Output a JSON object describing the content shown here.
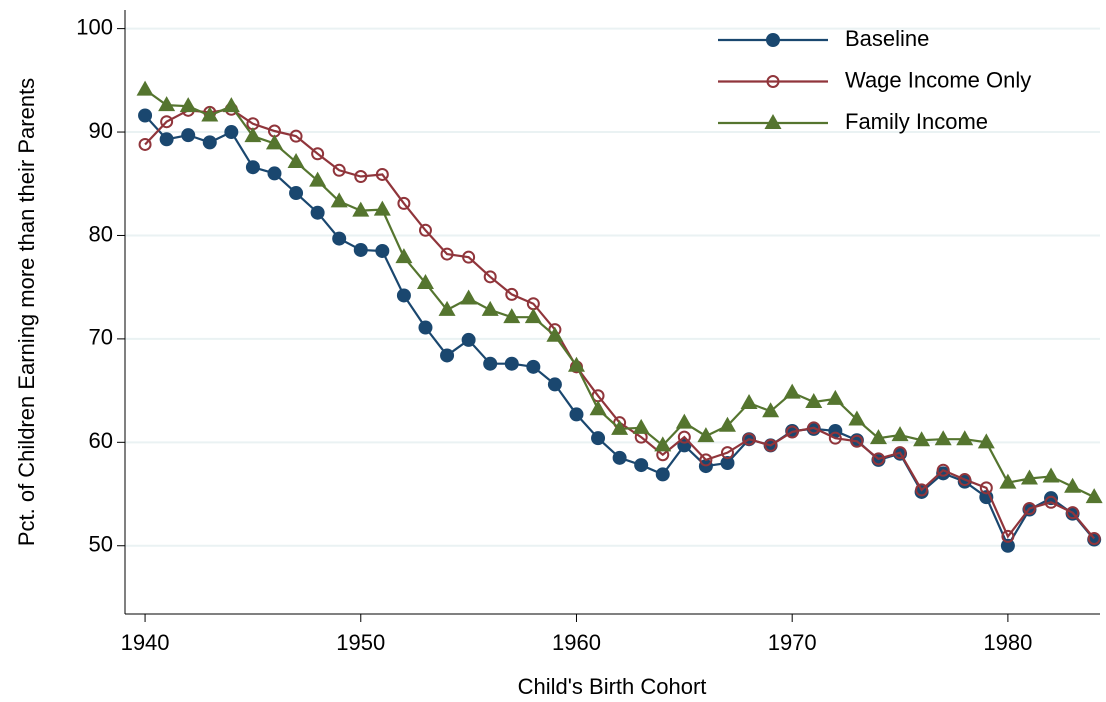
{
  "chart_data": {
    "type": "line",
    "x_label": "Child's Birth Cohort",
    "y_label": "Pct. of Children Earning more than their Parents",
    "x": [
      1940,
      1941,
      1942,
      1943,
      1944,
      1945,
      1946,
      1947,
      1948,
      1949,
      1950,
      1951,
      1952,
      1953,
      1954,
      1955,
      1956,
      1957,
      1958,
      1959,
      1960,
      1961,
      1962,
      1963,
      1964,
      1965,
      1966,
      1967,
      1968,
      1969,
      1970,
      1971,
      1972,
      1973,
      1974,
      1975,
      1976,
      1977,
      1978,
      1979,
      1980,
      1981,
      1982,
      1983,
      1984
    ],
    "series": [
      {
        "name": "Baseline",
        "color": "#1a476f",
        "marker": "circle",
        "values": [
          91.6,
          89.3,
          89.7,
          89.0,
          90.0,
          86.6,
          86.0,
          84.1,
          82.2,
          79.7,
          78.6,
          78.5,
          74.2,
          71.1,
          68.4,
          69.9,
          67.6,
          67.6,
          67.3,
          65.6,
          62.7,
          60.4,
          58.5,
          57.8,
          56.9,
          59.7,
          57.7,
          58.0,
          60.3,
          59.7,
          61.1,
          61.3,
          61.1,
          60.2,
          58.3,
          58.9,
          55.2,
          57.0,
          56.2,
          54.7,
          50.0,
          53.5,
          54.6,
          53.1,
          50.6
        ]
      },
      {
        "name": "Wage Income Only",
        "color": "#90353b",
        "marker": "circle-open",
        "values": [
          88.8,
          91.0,
          92.1,
          91.9,
          92.2,
          90.8,
          90.1,
          89.6,
          87.9,
          86.3,
          85.7,
          85.9,
          83.1,
          80.5,
          78.2,
          77.9,
          76.0,
          74.3,
          73.4,
          70.9,
          67.3,
          64.5,
          61.9,
          60.5,
          58.8,
          60.5,
          58.3,
          59.0,
          60.3,
          59.7,
          61.0,
          61.4,
          60.4,
          60.1,
          58.4,
          59.0,
          55.4,
          57.3,
          56.4,
          55.6,
          50.9,
          53.6,
          54.2,
          53.2,
          50.7
        ]
      },
      {
        "name": "Family Income",
        "color": "#55752f",
        "marker": "triangle",
        "values": [
          94.1,
          92.6,
          92.5,
          91.6,
          92.5,
          89.6,
          88.9,
          87.1,
          85.3,
          83.3,
          82.4,
          82.5,
          77.9,
          75.4,
          72.8,
          73.9,
          72.8,
          72.1,
          72.1,
          70.3,
          67.4,
          63.2,
          61.3,
          61.4,
          59.7,
          61.9,
          60.6,
          61.6,
          63.8,
          63.0,
          64.8,
          63.9,
          64.2,
          62.2,
          60.4,
          60.7,
          60.2,
          60.3,
          60.3,
          60.0,
          56.1,
          56.5,
          56.7,
          55.7,
          54.7
        ]
      }
    ],
    "xlim": [
      1939.07,
      1984.27
    ],
    "xticks": [
      1940,
      1950,
      1960,
      1970,
      1980
    ],
    "ylim": [
      43.4,
      101.8
    ],
    "yticks": [
      50,
      60,
      70,
      80,
      90,
      100
    ],
    "grid": true,
    "legend": "top-right"
  }
}
